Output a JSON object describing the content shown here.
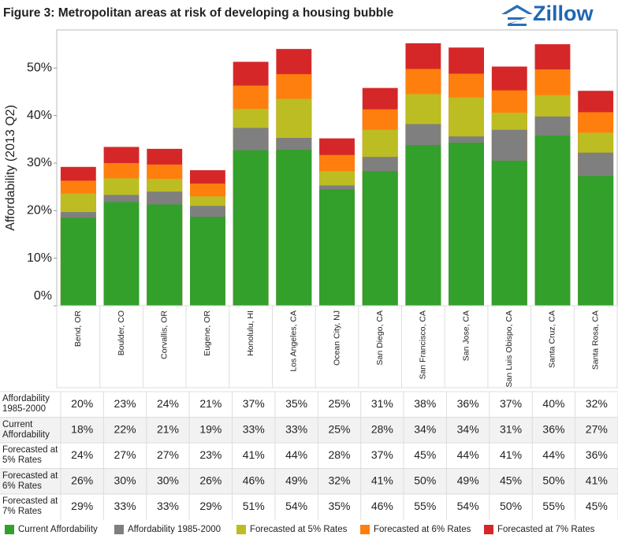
{
  "chart_data": {
    "type": "overlay-bar",
    "title": "Figure 3: Metropolitan areas at risk of developing a housing bubble",
    "logo": "Zillow",
    "y_label": "Affordability (2013 Q2)",
    "categories": [
      "Bend, OR",
      "Boulder, CO",
      "Corvallis, OR",
      "Eugene, OR",
      "Honolulu, HI",
      "Los Angeles, CA",
      "Ocean City, NJ",
      "San Diego, CA",
      "San Francisco, CA",
      "San Jose, CA",
      "San Luis Obispo, CA",
      "Santa Cruz, CA",
      "Santa Rosa, CA"
    ],
    "ylim": [
      0,
      58
    ],
    "yticks": [
      {
        "value": 0,
        "label": "0%"
      },
      {
        "value": 10,
        "label": "10%"
      },
      {
        "value": 20,
        "label": "20%"
      },
      {
        "value": 30,
        "label": "30%"
      },
      {
        "value": 40,
        "label": "40%"
      },
      {
        "value": 50,
        "label": "50%"
      }
    ],
    "grid": false,
    "legend": "bottom",
    "series": [
      {
        "name": "Affordability 1985-2000",
        "color": "#7f7f7f",
        "layer": 3,
        "values": [
          19.7,
          23.3,
          24.0,
          21.0,
          37.4,
          35.3,
          25.3,
          31.3,
          38.2,
          35.6,
          37.0,
          39.8,
          32.2
        ],
        "value_labels": [
          "20%",
          "23%",
          "24%",
          "21%",
          "37%",
          "35%",
          "25%",
          "31%",
          "38%",
          "36%",
          "37%",
          "40%",
          "32%"
        ]
      },
      {
        "name": "Current Affordability",
        "color": "#33a02c",
        "layer": 4,
        "values": [
          18.5,
          21.8,
          21.3,
          18.7,
          32.7,
          32.8,
          24.5,
          28.3,
          33.8,
          34.3,
          30.5,
          35.8,
          27.3
        ],
        "value_labels": [
          "18%",
          "22%",
          "21%",
          "19%",
          "33%",
          "33%",
          "25%",
          "28%",
          "34%",
          "34%",
          "31%",
          "36%",
          "27%"
        ]
      },
      {
        "name": "Forecasted at 5% Rates",
        "color": "#bcbd22",
        "layer": 2,
        "values": [
          23.6,
          26.8,
          26.7,
          23.0,
          41.4,
          43.5,
          28.3,
          37.0,
          44.5,
          43.8,
          40.6,
          44.3,
          36.4
        ],
        "value_labels": [
          "24%",
          "27%",
          "27%",
          "23%",
          "41%",
          "44%",
          "28%",
          "37%",
          "45%",
          "44%",
          "41%",
          "44%",
          "36%"
        ]
      },
      {
        "name": "Forecasted at 6% Rates",
        "color": "#ff7f0e",
        "layer": 1,
        "values": [
          26.3,
          30.0,
          29.7,
          25.7,
          46.3,
          48.7,
          31.7,
          41.3,
          49.8,
          48.8,
          45.3,
          49.7,
          40.7
        ],
        "value_labels": [
          "26%",
          "30%",
          "30%",
          "26%",
          "46%",
          "49%",
          "32%",
          "41%",
          "50%",
          "49%",
          "45%",
          "50%",
          "41%"
        ]
      },
      {
        "name": "Forecasted at 7% Rates",
        "color": "#d62728",
        "layer": 0,
        "values": [
          29.2,
          33.4,
          33.0,
          28.5,
          51.3,
          54.0,
          35.2,
          45.8,
          55.2,
          54.3,
          50.3,
          55.0,
          45.2
        ],
        "value_labels": [
          "29%",
          "33%",
          "33%",
          "29%",
          "51%",
          "54%",
          "35%",
          "46%",
          "55%",
          "54%",
          "50%",
          "55%",
          "45%"
        ]
      }
    ],
    "legend_order": [
      1,
      0,
      2,
      3,
      4
    ]
  }
}
